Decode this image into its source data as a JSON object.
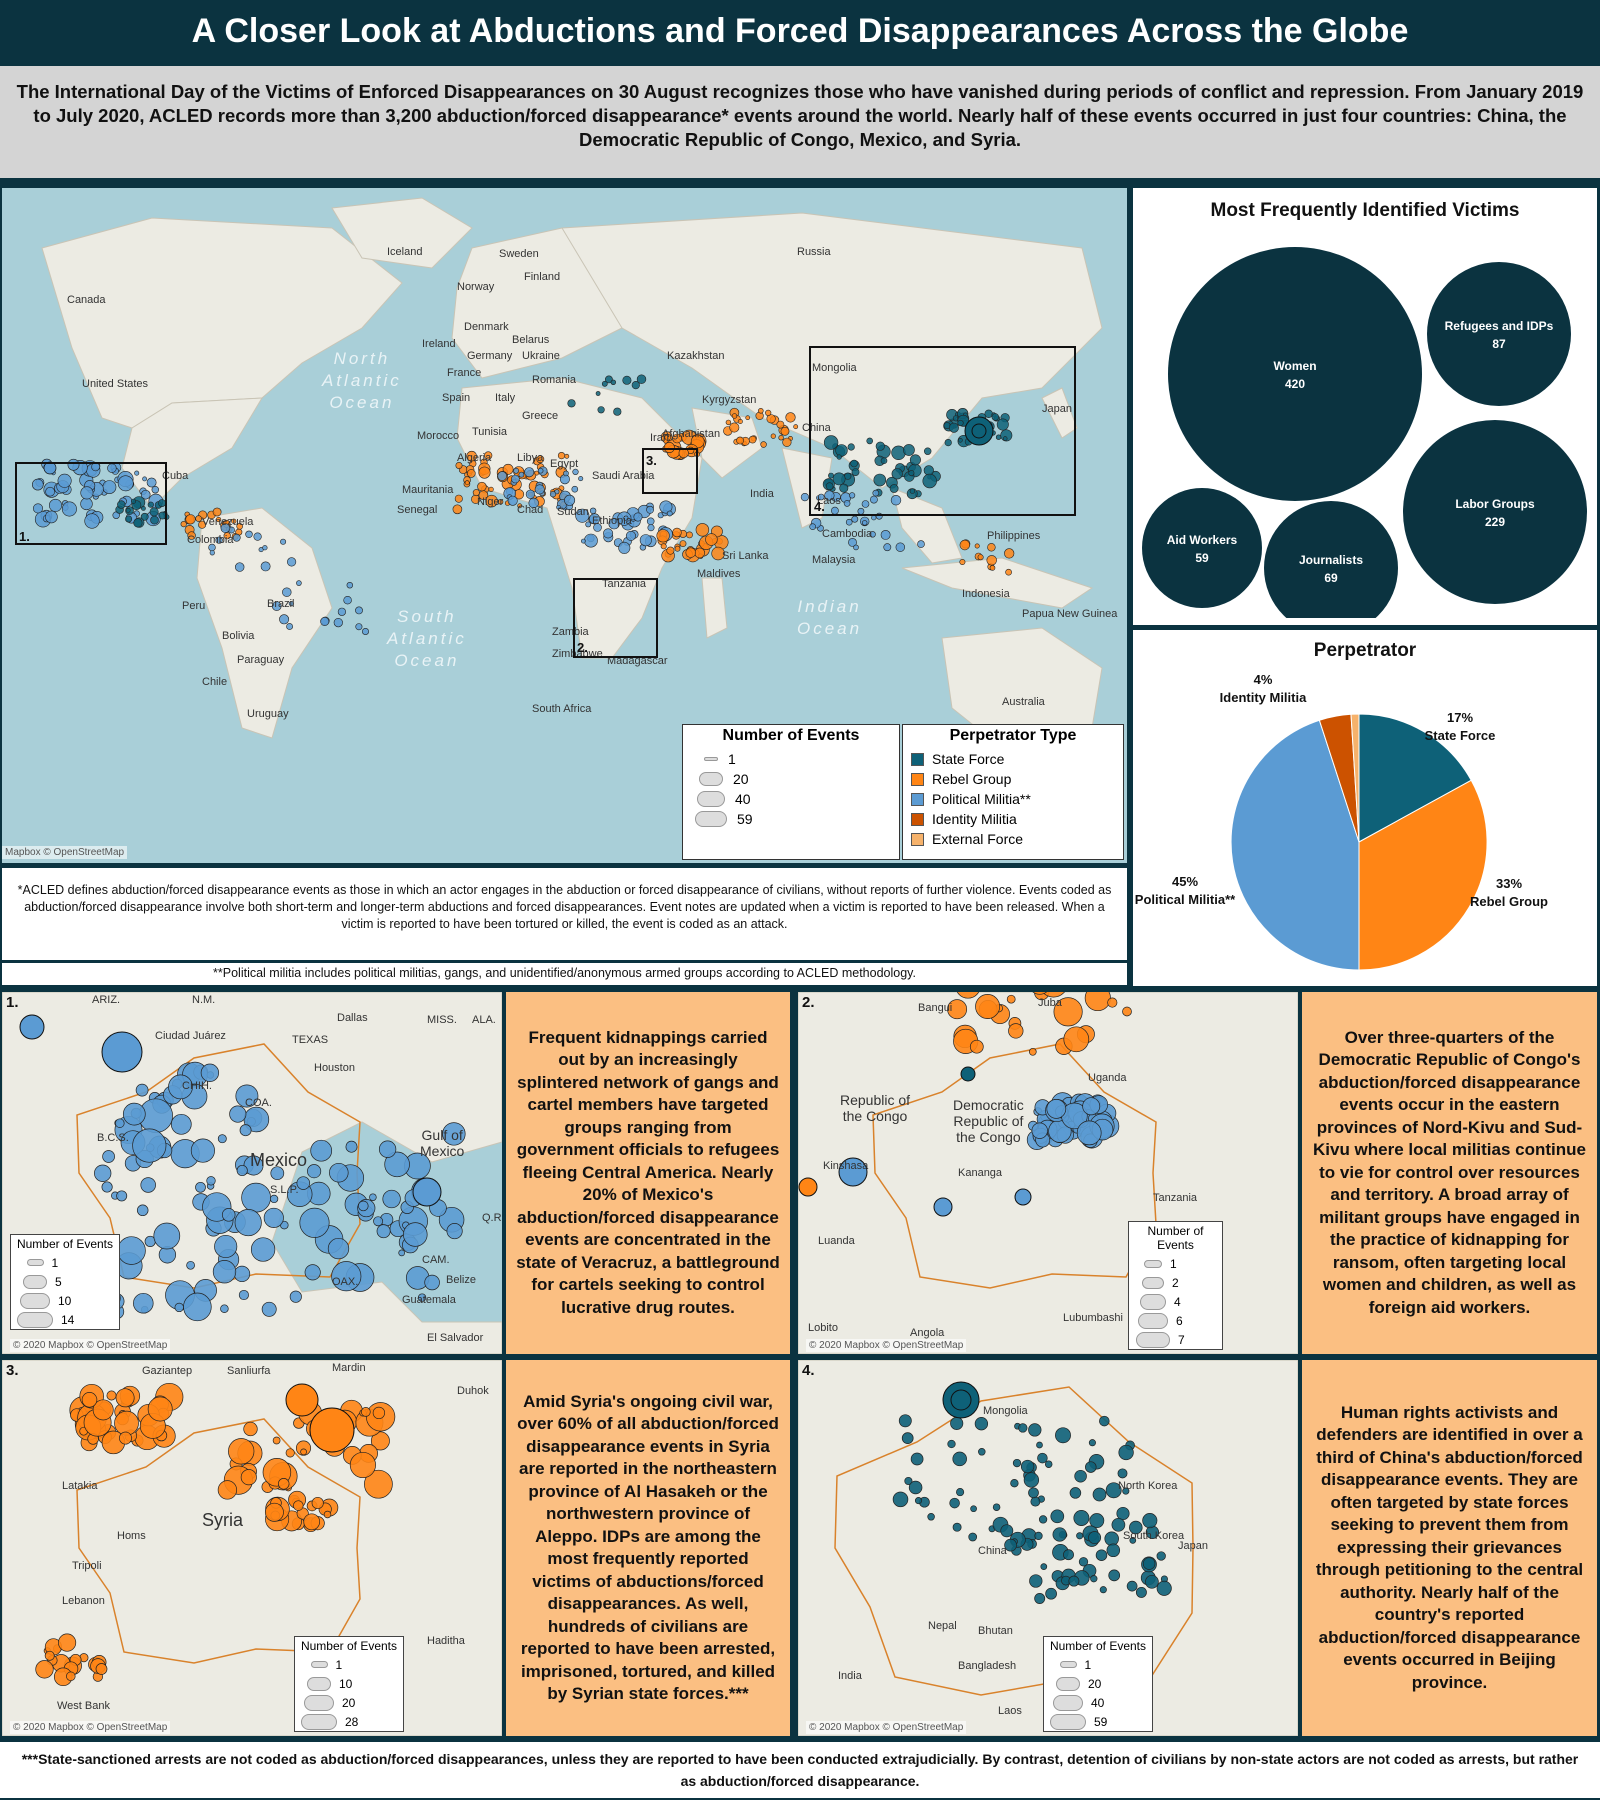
{
  "title": "A Closer Look at Abductions and Forced Disappearances Across the Globe",
  "intro": "The International Day of the Victims of Enforced Disappearances on 30 August recognizes those who have vanished during periods of conflict and repression. From January 2019 to July 2020, ACLED records more than 3,200 abduction/forced disappearance* events around the world. Nearly half of these events occurred in just four countries: China, the Democratic Republic of Congo, Mexico, and Syria.",
  "world_map": {
    "country_labels": [
      "Iceland",
      "Sweden",
      "Finland",
      "Norway",
      "Russia",
      "Canada",
      "Denmark",
      "Belarus",
      "Ireland",
      "Germany",
      "Ukraine",
      "Kazakhstan",
      "France",
      "Romania",
      "Mongolia",
      "United States",
      "Spain",
      "Italy",
      "Greece",
      "Kyrgyzstan",
      "Japan",
      "Tunisia",
      "Iran",
      "Afghanistan",
      "China",
      "Morocco",
      "Algeria",
      "Libya",
      "Egypt",
      "Saudi Arabia",
      "Cuba",
      "Mauritania",
      "Niger",
      "India",
      "Laos",
      "Senegal",
      "Chad",
      "Sudan",
      "Ethiopia",
      "Venezuela",
      "Cambodia",
      "Philippines",
      "Colombia",
      "Sri Lanka",
      "Malaysia",
      "Maldives",
      "Tanzania",
      "Indonesia",
      "Brazil",
      "Peru",
      "Papua New Guinea",
      "Bolivia",
      "Zambia",
      "Zimbabwe",
      "Madagascar",
      "Paraguay",
      "Chile",
      "South Africa",
      "Australia",
      "Uruguay"
    ],
    "ocean_labels": [
      "North\nAtlantic\nOcean",
      "South\nAtlantic\nOcean",
      "Indian\nOcean"
    ],
    "credit": "Mapbox © OpenStreetMap",
    "box_labels": [
      "1.",
      "2.",
      "3.",
      "4."
    ]
  },
  "legend_size": {
    "title": "Number of Events",
    "values": [
      "1",
      "20",
      "40",
      "59"
    ]
  },
  "legend_type": {
    "title": "Perpetrator Type",
    "items": [
      {
        "label": "State Force",
        "color": "#0e6178"
      },
      {
        "label": "Rebel Group",
        "color": "#ff8515"
      },
      {
        "label": "Political Militia**",
        "color": "#5b9bd3"
      },
      {
        "label": "Identity Militia",
        "color": "#cc5200"
      },
      {
        "label": "External Force",
        "color": "#f6b26b"
      }
    ]
  },
  "victims": {
    "title": "Most Frequently Identified Victims",
    "bubbles": [
      {
        "name": "Women",
        "value": "420"
      },
      {
        "name": "Refugees and IDPs",
        "value": "87"
      },
      {
        "name": "Labor Groups",
        "value": "229"
      },
      {
        "name": "Aid Workers",
        "value": "59"
      },
      {
        "name": "Journalists",
        "value": "69"
      }
    ]
  },
  "chart_data": {
    "type": "pie",
    "title": "Perpetrator",
    "slices": [
      {
        "label": "State Force",
        "value": 17,
        "text": "17%",
        "color": "#0e6178"
      },
      {
        "label": "Rebel Group",
        "value": 33,
        "text": "33%",
        "color": "#ff8515"
      },
      {
        "label": "Political Militia**",
        "value": 45,
        "text": "45%",
        "color": "#5b9bd3"
      },
      {
        "label": "Identity Militia",
        "value": 4,
        "text": "4%",
        "color": "#cc5200"
      },
      {
        "label": "External Force",
        "value": 1,
        "text": "",
        "color": "#f6b26b"
      }
    ]
  },
  "notes": {
    "definition": "*ACLED defines abduction/forced disappearance events as those in which an actor engages in the abduction or forced disappearance of civilians, without reports of further violence. Events coded as abduction/forced disappearance involve both short-term and longer-term abductions and forced disappearances. Event notes are updated when a victim is reported to have been released. When a victim is reported to have been tortured or killed, the event is coded as an attack.",
    "militia": "**Political militia includes political militias, gangs, and unidentified/anonymous armed groups according to ACLED methodology."
  },
  "insets": [
    {
      "num": "1.",
      "labels": [
        "ARIZ.",
        "N.M.",
        "Dallas",
        "MISS.",
        "ALA.",
        "Ciudad Juárez",
        "TEXAS",
        "Houston",
        "CHIH.",
        "COA.",
        "Gulf of\nMexico",
        "B.C.S.",
        "Mexico",
        "S.L.P.",
        "Q.R.",
        "CAM.",
        "Belize",
        "OAX.",
        "Guatemala",
        "El Salvador"
      ],
      "credit": "© 2020 Mapbox © OpenStreetMap",
      "legend": {
        "title": "Number of Events",
        "values": [
          "1",
          "5",
          "10",
          "14"
        ]
      },
      "text": "Frequent kidnappings carried out by an increasingly splintered network of gangs and cartel members have targeted groups ranging from government officials to refugees fleeing Central America. Nearly 20% of Mexico's abduction/forced disappearance events are concentrated in the state of Veracruz, a battleground for cartels seeking to control lucrative drug routes."
    },
    {
      "num": "2.",
      "labels": [
        "Bangui",
        "Juba",
        "Uganda",
        "Republic of\nthe Congo",
        "Democratic\nRepublic of\nthe Congo",
        "Kinshasa",
        "Kananga",
        "Tanzania",
        "Luanda",
        "Lubumbashi",
        "Lobito",
        "Angola"
      ],
      "credit": "© 2020 Mapbox © OpenStreetMap",
      "legend": {
        "title": "Number of Events",
        "values": [
          "1",
          "2",
          "4",
          "6",
          "7"
        ]
      },
      "text": "Over three-quarters of the Democratic Republic of Congo's abduction/forced disappearance events occur in the eastern provinces of Nord-Kivu and Sud-Kivu where local militias continue to vie for control over resources and territory. A broad array of militant groups have engaged in the practice of kidnapping for ransom, often targeting local women and children, as well as foreign aid workers."
    },
    {
      "num": "3.",
      "labels": [
        "Gaziantep",
        "Sanliurfa",
        "Mardin",
        "Duhok",
        "Latakia",
        "Syria",
        "Homs",
        "Tripoli",
        "Lebanon",
        "Haditha",
        "West Bank"
      ],
      "credit": "© 2020 Mapbox © OpenStreetMap",
      "legend": {
        "title": "Number of Events",
        "values": [
          "1",
          "10",
          "20",
          "28"
        ]
      },
      "text": "Amid Syria's ongoing civil war, over 60% of all abduction/forced disappearance events in Syria are reported in the northeastern province of Al Hasakeh or the northwestern province of Aleppo. IDPs are among the most frequently reported victims of abductions/forced disappearances. As well, hundreds of civilians are reported to have been arrested, imprisoned, tortured, and killed by Syrian state forces.***"
    },
    {
      "num": "4.",
      "labels": [
        "Mongolia",
        "North Korea",
        "South Korea",
        "Japan",
        "China",
        "Nepal",
        "Bhutan",
        "Bangladesh",
        "India",
        "Taiwan",
        "Laos"
      ],
      "credit": "© 2020 Mapbox © OpenStreetMap",
      "legend": {
        "title": "Number of Events",
        "values": [
          "1",
          "20",
          "40",
          "59"
        ]
      },
      "text": "Human rights activists and defenders are identified in over a third of China's abduction/forced disappearance events. They are often targeted by state forces seeking to prevent them from expressing their grievances through petitioning to the central authority. Nearly half of the country's reported abduction/forced disappearance events occurred in Beijing province."
    }
  ],
  "footer": "***State-sanctioned arrests are not coded as abduction/forced disappearances, unless they are reported to have been conducted extrajudicially. By contrast, detention of civilians by non-state actors are not coded as arrests, but rather as abduction/forced disappearance."
}
